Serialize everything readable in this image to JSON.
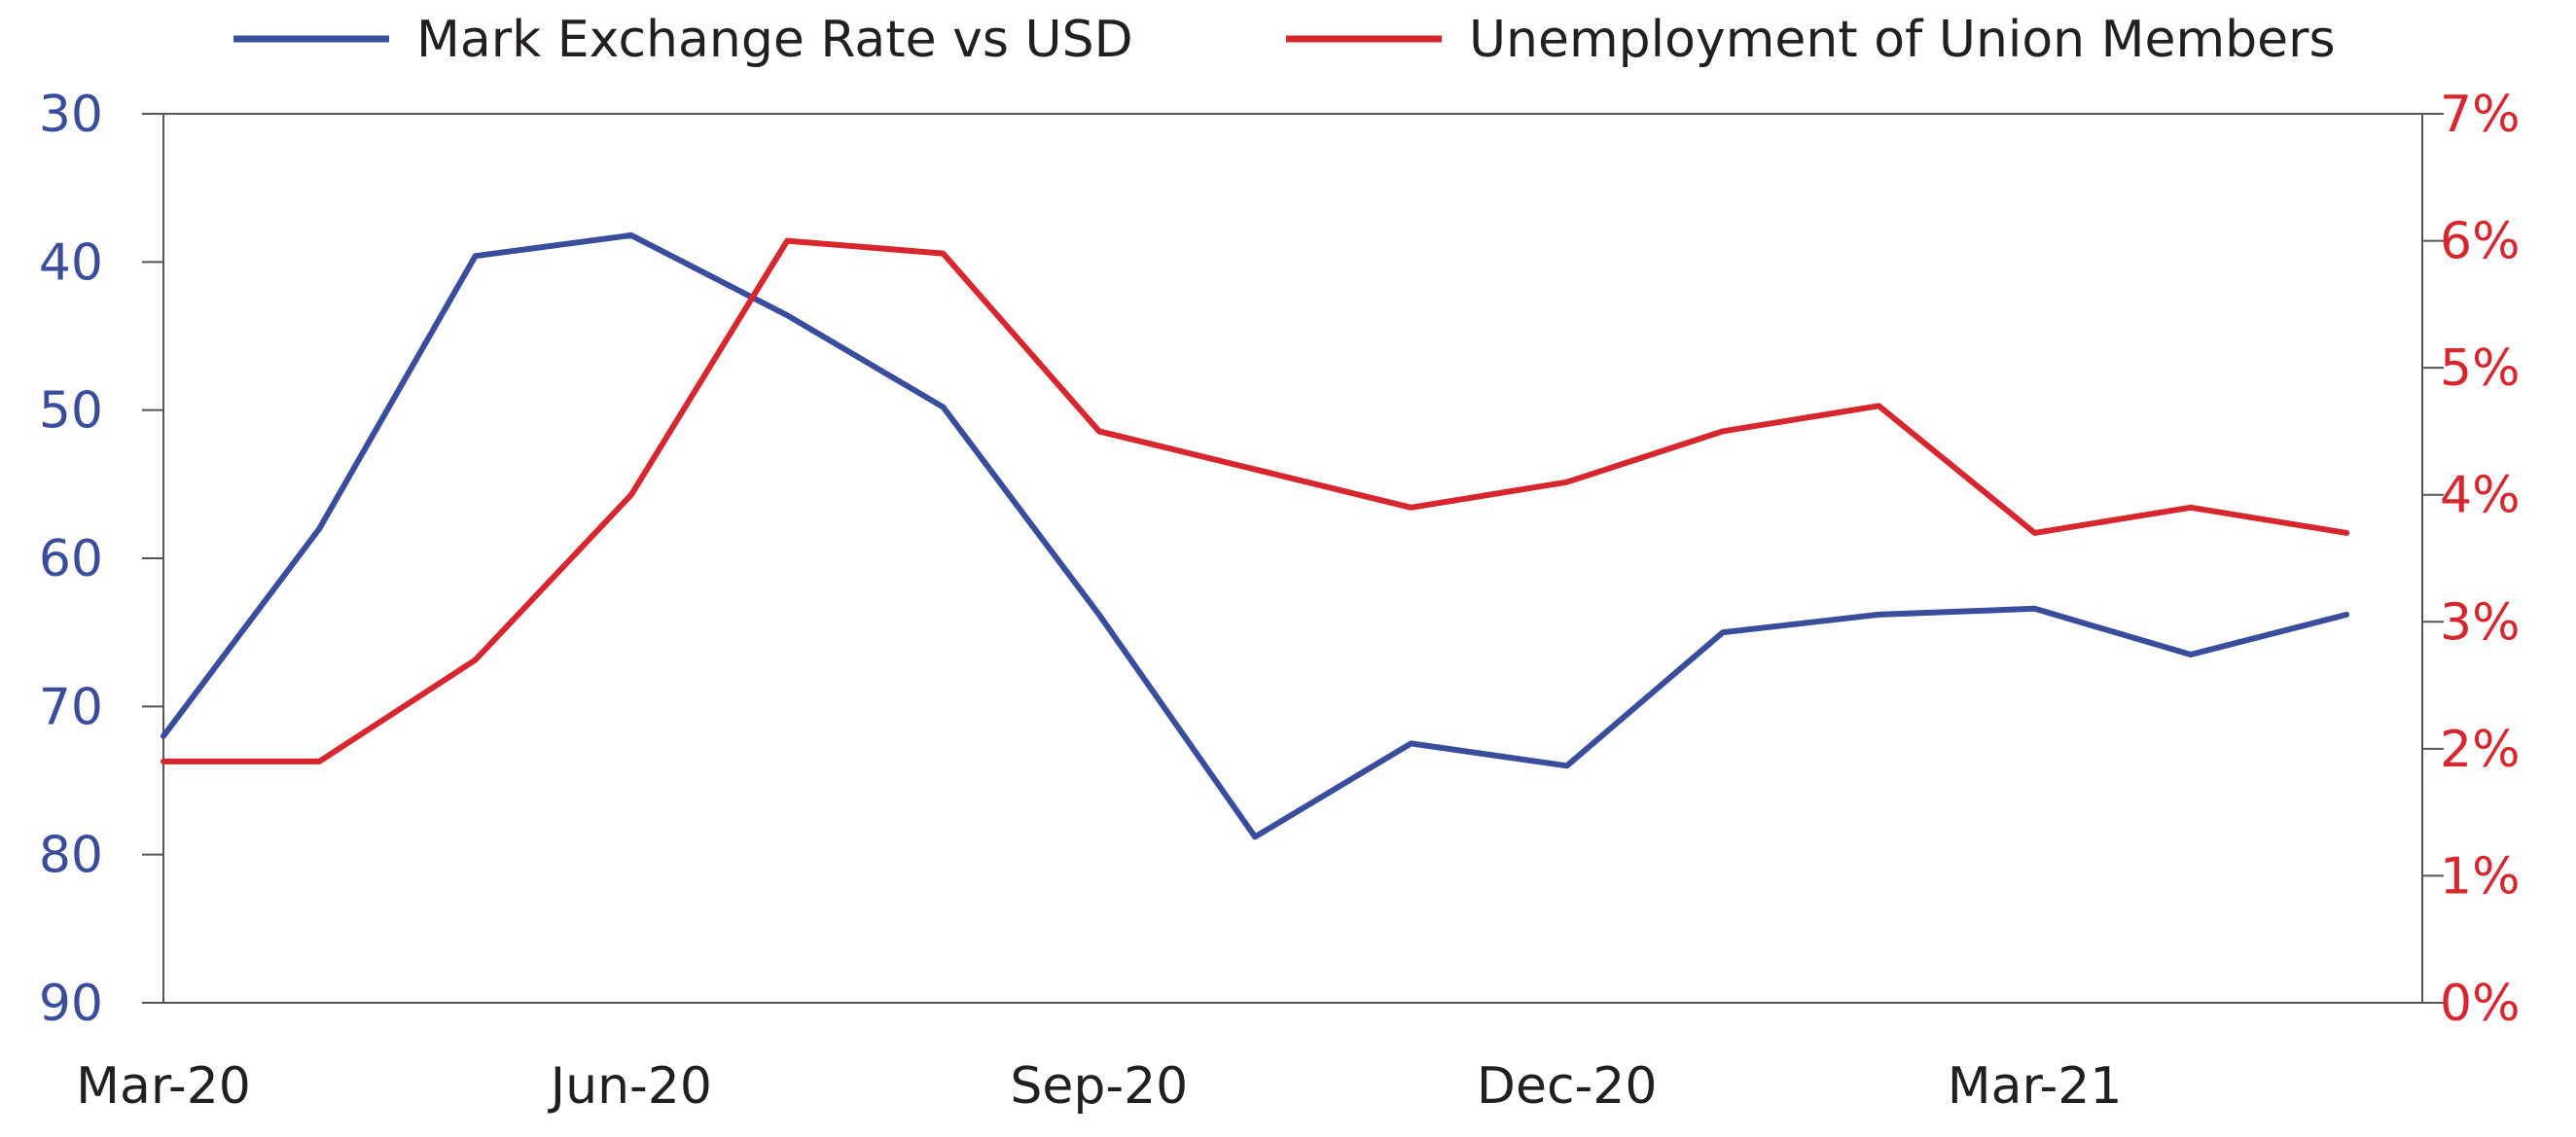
{
  "chart_data": {
    "type": "line",
    "x_tick_labels": [
      "Mar-20",
      "Jun-20",
      "Sep-20",
      "Dec-20",
      "Mar-21"
    ],
    "x": [
      "Mar-20",
      "Apr-20",
      "May-20",
      "Jun-20",
      "Jul-20",
      "Aug-20",
      "Sep-20",
      "Oct-20",
      "Nov-20",
      "Dec-20",
      "Jan-21",
      "Feb-21",
      "Mar-21",
      "Apr-21",
      "May-21"
    ],
    "left_axis": {
      "ylim": [
        30,
        90
      ],
      "inverted": true,
      "ticks": [
        "30",
        "40",
        "50",
        "60",
        "70",
        "80",
        "90"
      ],
      "color": "#3a4d9c"
    },
    "right_axis": {
      "ylim": [
        0,
        7
      ],
      "unit": "%",
      "ticks": [
        "0%",
        "1%",
        "2%",
        "3%",
        "4%",
        "5%",
        "6%",
        "7%"
      ],
      "color": "#d7262e"
    },
    "series": [
      {
        "name": "Mark Exchange Rate vs USD",
        "axis": "left",
        "color": "#3a4d9c",
        "values": [
          72,
          58,
          39.6,
          38.2,
          43.6,
          49.8,
          63.8,
          78.8,
          72.5,
          74,
          65,
          63.8,
          63.4,
          66.5,
          63.8
        ]
      },
      {
        "name": "Unemployment of Union Members",
        "axis": "right",
        "color": "#d7262e",
        "values": [
          1.9,
          1.9,
          2.7,
          4.0,
          6.0,
          5.9,
          4.5,
          4.2,
          3.9,
          4.1,
          4.5,
          4.7,
          3.7,
          3.9,
          3.7
        ]
      }
    ],
    "legend_position": "top",
    "grid": false
  }
}
